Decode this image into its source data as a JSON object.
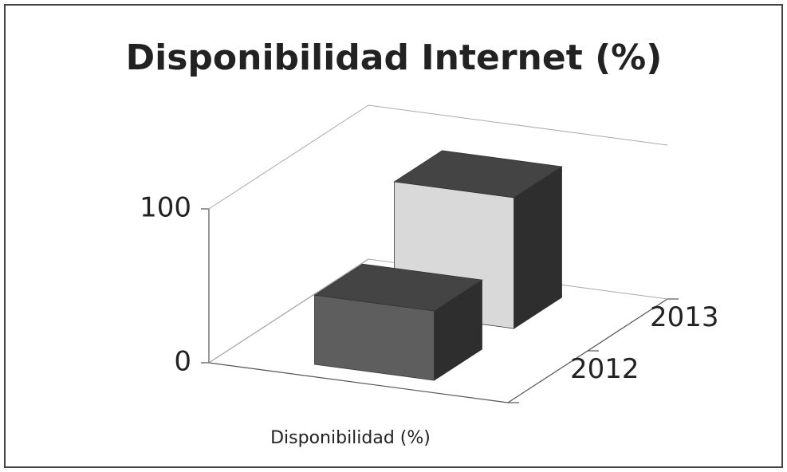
{
  "chart_data": {
    "type": "bar3d",
    "title": "Disponibilidad  Internet (%)",
    "categories": [
      "Disponibilidad (%)"
    ],
    "series": [
      {
        "name": "2012",
        "color": "#5e5e5e",
        "values": [
          45
        ]
      },
      {
        "name": "2013",
        "color": "#d9d9d9",
        "values": [
          85
        ]
      }
    ],
    "ylim": [
      0,
      100
    ],
    "yticks": [
      0,
      100
    ],
    "grid": true
  }
}
